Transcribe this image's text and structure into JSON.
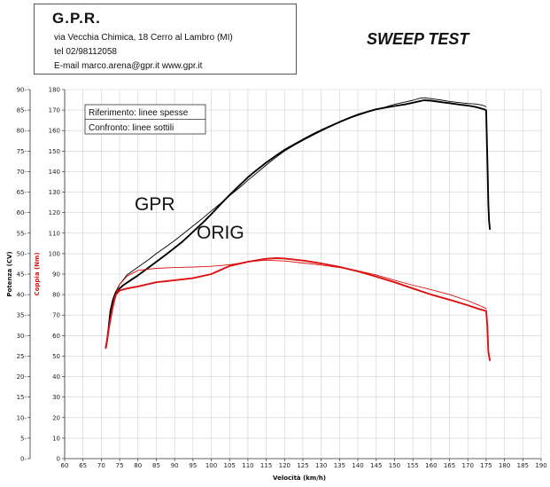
{
  "header": {
    "company": "G.P.R.",
    "address": "via Vecchia Chimica, 18 Cerro al Lambro (MI)",
    "phone": "tel 02/98112058",
    "email": "E-mail marco.arena@gpr.it  www.gpr.it"
  },
  "title": "SWEEP TEST",
  "chart_data": {
    "type": "line",
    "xlabel": "Velocità (km/h)",
    "ylabel_left": "Potenza (CV)",
    "ylabel_right": "Coppia (Nm)",
    "xlim": [
      60,
      190
    ],
    "ylim_left": [
      0,
      90
    ],
    "ylim_right": [
      0,
      180
    ],
    "x_ticks": [
      60,
      65,
      70,
      75,
      80,
      85,
      90,
      95,
      100,
      105,
      110,
      115,
      120,
      125,
      130,
      135,
      140,
      145,
      150,
      155,
      160,
      165,
      170,
      175,
      180,
      185,
      190
    ],
    "y_ticks_left": [
      0,
      5,
      10,
      15,
      20,
      25,
      30,
      35,
      40,
      45,
      50,
      55,
      60,
      65,
      70,
      75,
      80,
      85,
      90
    ],
    "y_ticks_right": [
      0,
      10,
      20,
      30,
      40,
      50,
      60,
      70,
      80,
      90,
      100,
      110,
      120,
      130,
      140,
      150,
      160,
      170,
      180
    ],
    "legend": {
      "reference": "Riferimento: linee spesse",
      "comparison": "Confronto: linee sottili"
    },
    "annotations": [
      {
        "text": "GPR",
        "x": 87,
        "y": 62
      },
      {
        "text": "ORIG",
        "x": 102,
        "y": 55
      }
    ],
    "colors": {
      "power": "#000000",
      "torque": "#dd1111",
      "grid": "#d0d0d0"
    },
    "series": [
      {
        "quantity": "power",
        "role": "thick",
        "axis": "left",
        "x": [
          71.2,
          71.6,
          72,
          72.5,
          73,
          73.5,
          74,
          75,
          76,
          78,
          80,
          82,
          85,
          88,
          90,
          92,
          95,
          98,
          100,
          102,
          105,
          108,
          110,
          112,
          115,
          118,
          120,
          123,
          125,
          128,
          130,
          133,
          135,
          138,
          140,
          143,
          145,
          148,
          150,
          153,
          155,
          157,
          158,
          160,
          163,
          165,
          168,
          170,
          172,
          174,
          175,
          175.4,
          175.6,
          175.8,
          176
        ],
        "y": [
          27,
          29,
          32,
          36,
          38,
          39.5,
          40.3,
          41.5,
          42.3,
          43.5,
          44.7,
          46,
          48,
          50,
          51.4,
          52.8,
          55.3,
          57.8,
          59.6,
          61.5,
          64.3,
          66.9,
          68.6,
          70.1,
          72.2,
          74.1,
          75.3,
          76.8,
          77.8,
          79.2,
          80.1,
          81.3,
          82.1,
          83.2,
          83.9,
          84.7,
          85.2,
          85.7,
          86,
          86.4,
          86.8,
          87.2,
          87.4,
          87.3,
          86.9,
          86.7,
          86.3,
          86.1,
          85.8,
          85.3,
          85,
          70,
          62,
          58,
          56
        ]
      },
      {
        "quantity": "power",
        "role": "thin",
        "axis": "left",
        "x": [
          71.4,
          71.8,
          72.3,
          73,
          73.8,
          75,
          77,
          80,
          83,
          85,
          88,
          90,
          93,
          95,
          98,
          100,
          103,
          105,
          108,
          110,
          113,
          115,
          118,
          120,
          123,
          125,
          128,
          130,
          133,
          135,
          138,
          140,
          143,
          145,
          148,
          150,
          153,
          155,
          157,
          158,
          160,
          163,
          165,
          168,
          170,
          172,
          174,
          175
        ],
        "y": [
          27.5,
          30,
          34,
          38.5,
          40.5,
          42.5,
          44.8,
          46.7,
          48.6,
          50,
          51.9,
          53.2,
          55.3,
          56.7,
          58.9,
          60.4,
          62.6,
          64.1,
          66.3,
          67.9,
          70.1,
          71.6,
          73.7,
          75,
          76.6,
          77.6,
          79,
          79.9,
          81.2,
          82,
          83.1,
          83.7,
          84.6,
          85.1,
          85.9,
          86.4,
          87,
          87.4,
          87.9,
          88,
          87.8,
          87.4,
          87.1,
          86.8,
          86.6,
          86.5,
          86.2,
          85.8
        ]
      },
      {
        "quantity": "torque",
        "role": "thick",
        "axis": "right",
        "x": [
          71.2,
          71.6,
          72,
          72.5,
          73,
          73.5,
          74,
          75,
          77,
          80,
          85,
          90,
          95,
          100,
          105,
          110,
          115,
          118,
          120,
          125,
          130,
          135,
          140,
          145,
          150,
          155,
          160,
          165,
          170,
          173,
          175,
          175.3,
          175.6,
          175.8,
          176
        ],
        "y": [
          54,
          58,
          63,
          68,
          73,
          77,
          80,
          82,
          83,
          84,
          86,
          87,
          88,
          90,
          94,
          96,
          97.5,
          97.8,
          97.6,
          96.6,
          95.2,
          93.5,
          91.4,
          88.8,
          86,
          83,
          80,
          77.5,
          74.8,
          73,
          72,
          65,
          52,
          50,
          48
        ]
      },
      {
        "quantity": "torque",
        "role": "thin",
        "axis": "right",
        "x": [
          71.4,
          71.8,
          72.3,
          73,
          73.8,
          75,
          77,
          80,
          85,
          90,
          95,
          100,
          105,
          110,
          115,
          120,
          125,
          130,
          135,
          140,
          145,
          150,
          155,
          160,
          165,
          170,
          173,
          175
        ],
        "y": [
          55,
          60,
          66,
          73,
          79,
          85,
          89,
          91.8,
          92.8,
          93.2,
          93.4,
          93.8,
          94.6,
          96,
          96.8,
          96.4,
          95.4,
          94.4,
          93.2,
          91.6,
          89.6,
          87,
          84.6,
          82.4,
          80,
          77,
          74.8,
          73.2
        ]
      }
    ]
  }
}
